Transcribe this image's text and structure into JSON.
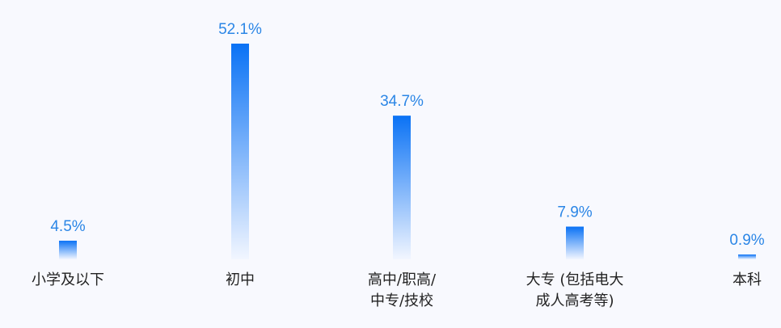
{
  "chart_data": {
    "type": "bar",
    "categories": [
      [
        "小学及以下"
      ],
      [
        "初中"
      ],
      [
        "高中/职高/",
        "中专/技校"
      ],
      [
        "大专 (包括电大",
        "成人高考等)"
      ],
      [
        "本科"
      ]
    ],
    "values": [
      4.5,
      52.1,
      34.7,
      7.9,
      0.9
    ],
    "value_labels": [
      "4.5%",
      "52.1%",
      "34.7%",
      "7.9%",
      "0.9%"
    ],
    "ylim": [
      0,
      52.1
    ],
    "grid": false,
    "colors": {
      "bar_top": "#0a72f5",
      "bar_bottom": "#f2f6ff",
      "value_text": "#2b86e6",
      "category_text": "#222222",
      "background": "#f8f9fe"
    }
  }
}
